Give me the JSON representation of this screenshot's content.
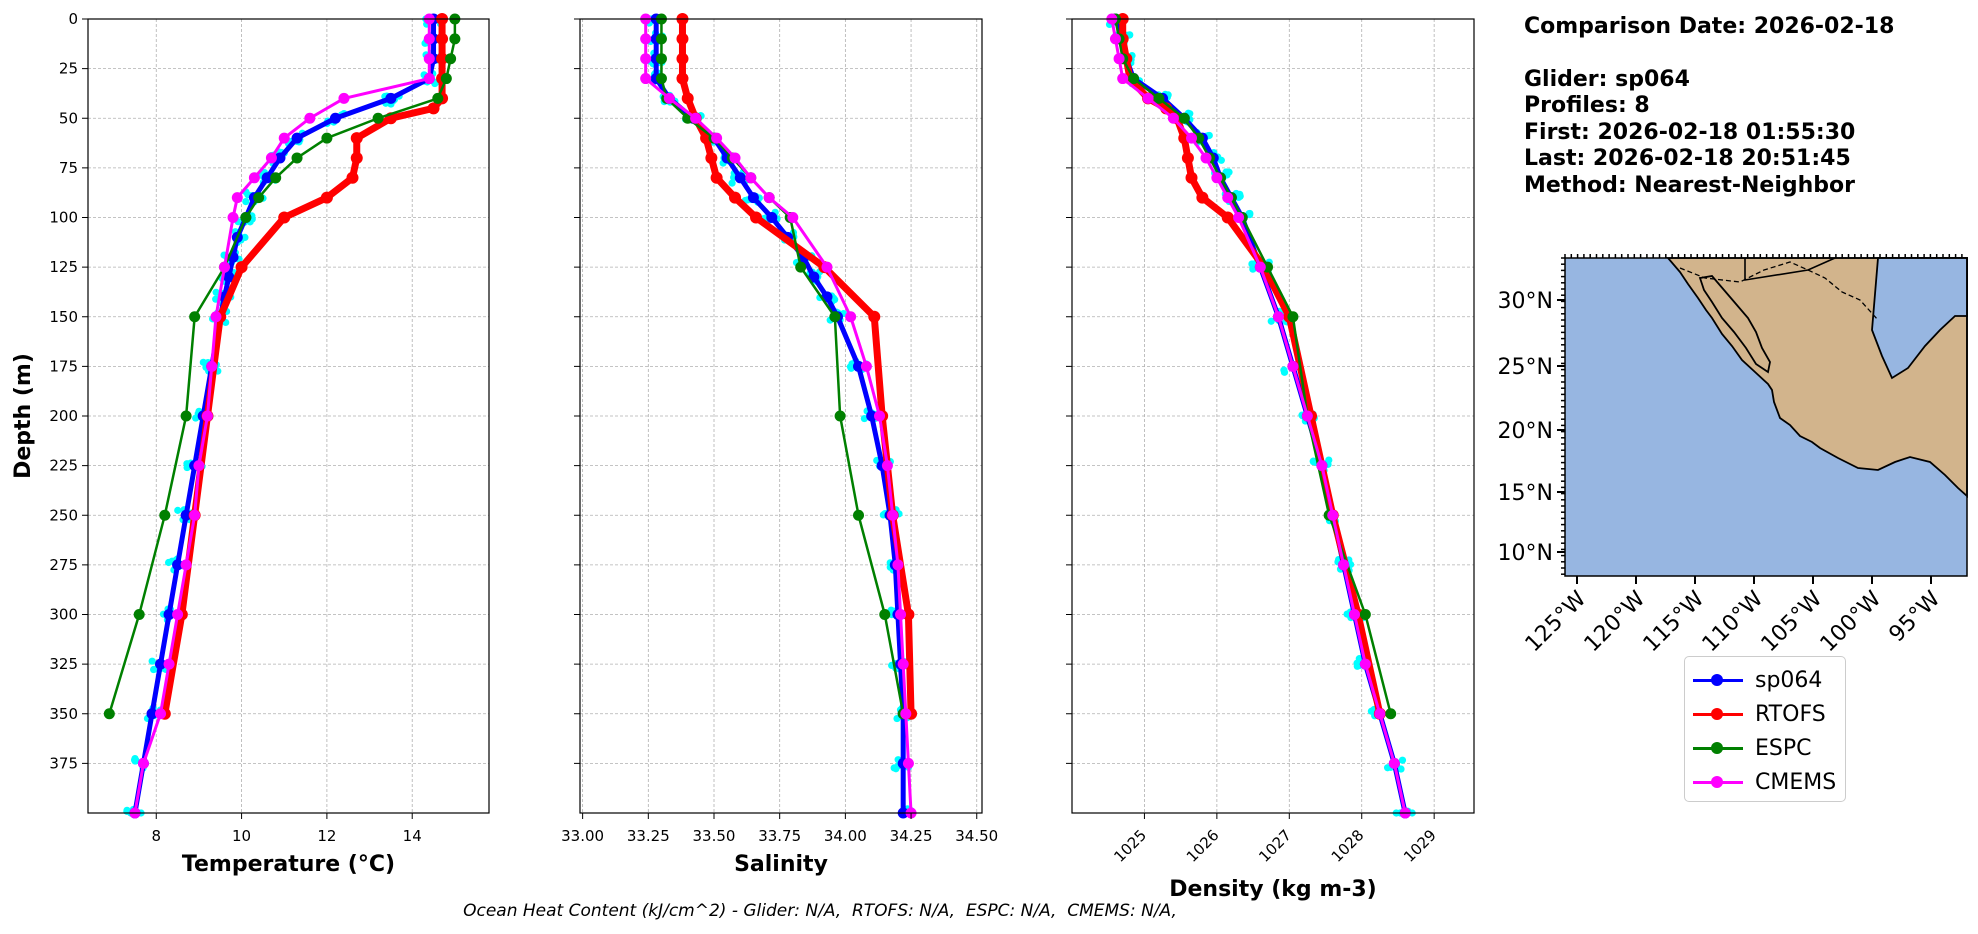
{
  "chart_data": [
    {
      "type": "line",
      "xlabel": "Temperature (°C)",
      "ylabel": "Depth (m)",
      "xlim": [
        6.4,
        15.8
      ],
      "ylim": [
        400,
        0
      ],
      "xticks": [
        8,
        10,
        12,
        14
      ],
      "yticks": [
        0,
        25,
        50,
        75,
        100,
        125,
        150,
        175,
        200,
        225,
        250,
        275,
        300,
        325,
        350,
        375
      ],
      "grid": true,
      "series": [
        {
          "name": "sp064",
          "color": "#0000ff",
          "depth": [
            0,
            10,
            20,
            30,
            40,
            50,
            60,
            70,
            80,
            90,
            100,
            110,
            120,
            130,
            140,
            150,
            175,
            200,
            225,
            250,
            275,
            300,
            325,
            350,
            375,
            400
          ],
          "values": [
            14.5,
            14.5,
            14.5,
            14.4,
            13.5,
            12.2,
            11.3,
            10.9,
            10.6,
            10.3,
            10.1,
            9.9,
            9.8,
            9.7,
            9.6,
            9.5,
            9.3,
            9.1,
            8.9,
            8.7,
            8.5,
            8.3,
            8.1,
            7.9,
            7.7,
            7.5
          ]
        },
        {
          "name": "RTOFS",
          "color": "#ff0000",
          "depth": [
            0,
            10,
            20,
            30,
            40,
            45,
            50,
            60,
            70,
            80,
            90,
            100,
            125,
            150,
            200,
            250,
            300,
            350
          ],
          "values": [
            14.7,
            14.7,
            14.7,
            14.7,
            14.7,
            14.5,
            13.5,
            12.7,
            12.7,
            12.6,
            12.0,
            11.0,
            10.0,
            9.5,
            9.2,
            8.9,
            8.6,
            8.2
          ]
        },
        {
          "name": "ESPC",
          "color": "#008000",
          "depth": [
            0,
            10,
            20,
            30,
            40,
            50,
            60,
            70,
            80,
            90,
            100,
            125,
            150,
            200,
            250,
            300,
            350
          ],
          "values": [
            15.0,
            15.0,
            14.9,
            14.8,
            14.6,
            13.2,
            12.0,
            11.3,
            10.8,
            10.4,
            10.1,
            9.6,
            8.9,
            8.7,
            8.2,
            7.6,
            6.9
          ]
        },
        {
          "name": "CMEMS",
          "color": "#ff00ff",
          "depth": [
            0,
            10,
            20,
            30,
            40,
            50,
            60,
            70,
            80,
            90,
            100,
            125,
            150,
            175,
            200,
            225,
            250,
            275,
            300,
            325,
            350,
            375,
            400
          ],
          "values": [
            14.4,
            14.4,
            14.4,
            14.4,
            12.4,
            11.6,
            11.0,
            10.7,
            10.3,
            9.9,
            9.8,
            9.6,
            9.4,
            9.3,
            9.2,
            9.0,
            8.9,
            8.7,
            8.5,
            8.3,
            8.1,
            7.7,
            7.5
          ]
        }
      ]
    },
    {
      "type": "line",
      "xlabel": "Salinity",
      "ylim": [
        400,
        0
      ],
      "xlim": [
        32.99,
        34.52
      ],
      "xticks": [
        "33.00",
        "33.25",
        "33.50",
        "33.75",
        "34.00",
        "34.25",
        "34.50"
      ],
      "grid": true,
      "series": [
        {
          "name": "sp064",
          "color": "#0000ff",
          "depth": [
            0,
            10,
            20,
            30,
            40,
            50,
            60,
            70,
            80,
            90,
            100,
            110,
            120,
            130,
            140,
            150,
            175,
            200,
            225,
            250,
            275,
            300,
            325,
            350,
            375,
            400
          ],
          "values": [
            33.28,
            33.28,
            33.28,
            33.28,
            33.33,
            33.42,
            33.5,
            33.55,
            33.6,
            33.65,
            33.72,
            33.78,
            33.84,
            33.88,
            33.93,
            33.97,
            34.05,
            34.1,
            34.14,
            34.17,
            34.19,
            34.2,
            34.21,
            34.22,
            34.22,
            34.22
          ]
        },
        {
          "name": "RTOFS",
          "color": "#ff0000",
          "depth": [
            0,
            10,
            20,
            30,
            40,
            50,
            60,
            70,
            80,
            90,
            100,
            125,
            150,
            200,
            250,
            300,
            350
          ],
          "values": [
            33.38,
            33.38,
            33.38,
            33.38,
            33.4,
            33.43,
            33.47,
            33.49,
            33.51,
            33.58,
            33.66,
            33.92,
            34.11,
            34.14,
            34.18,
            34.24,
            34.25
          ]
        },
        {
          "name": "ESPC",
          "color": "#008000",
          "depth": [
            0,
            10,
            20,
            30,
            40,
            50,
            60,
            70,
            80,
            90,
            100,
            125,
            150,
            200,
            250,
            300,
            350
          ],
          "values": [
            33.3,
            33.3,
            33.3,
            33.3,
            33.32,
            33.4,
            33.5,
            33.57,
            33.64,
            33.71,
            33.79,
            33.83,
            33.96,
            33.98,
            34.05,
            34.15,
            34.22
          ]
        },
        {
          "name": "CMEMS",
          "color": "#ff00ff",
          "depth": [
            0,
            10,
            20,
            30,
            40,
            50,
            60,
            70,
            80,
            90,
            100,
            125,
            150,
            175,
            200,
            225,
            250,
            275,
            300,
            325,
            350,
            375,
            400
          ],
          "values": [
            33.24,
            33.24,
            33.24,
            33.24,
            33.33,
            33.43,
            33.51,
            33.58,
            33.64,
            33.71,
            33.8,
            33.93,
            34.02,
            34.08,
            34.13,
            34.16,
            34.18,
            34.2,
            34.21,
            34.22,
            34.23,
            34.24,
            34.25
          ]
        }
      ]
    },
    {
      "type": "line",
      "xlabel": "Density (kg m-3)",
      "ylim": [
        400,
        0
      ],
      "xlim": [
        1024.0,
        1029.55
      ],
      "xticks": [
        1025,
        1026,
        1027,
        1028,
        1029
      ],
      "grid": true,
      "series": [
        {
          "name": "sp064",
          "color": "#0000ff",
          "depth": [
            0,
            10,
            20,
            30,
            40,
            50,
            60,
            70,
            80,
            90,
            100,
            125,
            150,
            175,
            200,
            225,
            250,
            275,
            300,
            325,
            350,
            375,
            400
          ],
          "values": [
            1024.6,
            1024.7,
            1024.75,
            1024.85,
            1025.25,
            1025.55,
            1025.8,
            1025.95,
            1026.05,
            1026.2,
            1026.35,
            1026.6,
            1026.85,
            1027.05,
            1027.25,
            1027.45,
            1027.6,
            1027.75,
            1027.9,
            1028.05,
            1028.25,
            1028.45,
            1028.6
          ]
        },
        {
          "name": "RTOFS",
          "color": "#ff0000",
          "depth": [
            0,
            10,
            20,
            30,
            40,
            45,
            50,
            60,
            70,
            80,
            90,
            100,
            125,
            150,
            200,
            250,
            300,
            350
          ],
          "values": [
            1024.7,
            1024.7,
            1024.75,
            1024.8,
            1025.05,
            1025.3,
            1025.45,
            1025.55,
            1025.6,
            1025.65,
            1025.8,
            1026.15,
            1026.65,
            1027.0,
            1027.3,
            1027.6,
            1027.95,
            1028.25
          ]
        },
        {
          "name": "ESPC",
          "color": "#008000",
          "depth": [
            0,
            10,
            20,
            30,
            40,
            50,
            60,
            70,
            80,
            90,
            100,
            125,
            150,
            200,
            250,
            300,
            350
          ],
          "values": [
            1024.6,
            1024.65,
            1024.7,
            1024.85,
            1025.2,
            1025.55,
            1025.75,
            1025.9,
            1026.05,
            1026.2,
            1026.35,
            1026.7,
            1027.05,
            1027.25,
            1027.55,
            1028.05,
            1028.4
          ]
        },
        {
          "name": "CMEMS",
          "color": "#ff00ff",
          "depth": [
            0,
            10,
            20,
            30,
            40,
            50,
            60,
            70,
            80,
            90,
            100,
            125,
            150,
            175,
            200,
            225,
            250,
            275,
            300,
            325,
            350,
            375,
            400
          ],
          "values": [
            1024.55,
            1024.6,
            1024.65,
            1024.7,
            1025.05,
            1025.4,
            1025.65,
            1025.85,
            1026.0,
            1026.15,
            1026.3,
            1026.6,
            1026.85,
            1027.05,
            1027.25,
            1027.45,
            1027.6,
            1027.75,
            1027.9,
            1028.05,
            1028.25,
            1028.45,
            1028.6
          ]
        }
      ]
    }
  ],
  "map": {
    "lat_ticks": [
      "30°N",
      "25°N",
      "20°N",
      "15°N",
      "10°N"
    ],
    "lon_ticks": [
      "125°W",
      "120°W",
      "115°W",
      "110°W",
      "105°W",
      "100°W",
      "95°W"
    ],
    "ocean_color": "#97b6e1",
    "land_color": "#d2b48c"
  },
  "info": {
    "comparison_date": "Comparison Date: 2026-02-18",
    "glider": "Glider: sp064",
    "profiles": "Profiles: 8",
    "first": "First: 2026-02-18 01:55:30",
    "last": "Last: 2026-02-18 20:51:45",
    "method": "Method: Nearest-Neighbor"
  },
  "legend": {
    "items": [
      {
        "label": "sp064",
        "color": "#0000ff"
      },
      {
        "label": "RTOFS",
        "color": "#ff0000"
      },
      {
        "label": "ESPC",
        "color": "#008000"
      },
      {
        "label": "CMEMS",
        "color": "#ff00ff"
      }
    ]
  },
  "footer": "Ocean Heat Content (kJ/cm^2) - Glider: N/A,  RTOFS: N/A,  ESPC: N/A,  CMEMS: N/A,"
}
